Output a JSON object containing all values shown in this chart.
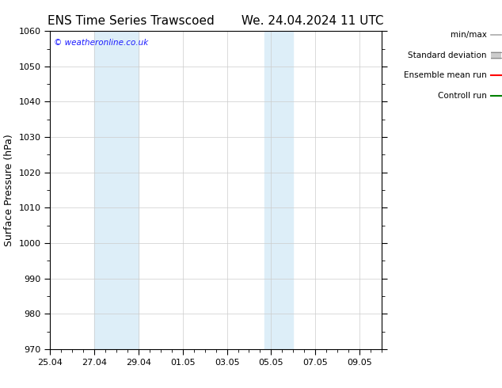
{
  "title_left": "ENS Time Series Trawscoed",
  "title_right": "We. 24.04.2024 11 UTC",
  "ylabel": "Surface Pressure (hPa)",
  "ylim": [
    970,
    1060
  ],
  "yticks": [
    970,
    980,
    990,
    1000,
    1010,
    1020,
    1030,
    1040,
    1050,
    1060
  ],
  "xtick_labels": [
    "25.04",
    "27.04",
    "29.04",
    "01.05",
    "03.05",
    "05.05",
    "07.05",
    "09.05"
  ],
  "xtick_positions": [
    0,
    2,
    4,
    6,
    8,
    10,
    12,
    14
  ],
  "xminor_step": 0.5,
  "xlim": [
    0,
    15
  ],
  "shaded_bands": [
    {
      "x_start": 2,
      "x_end": 4,
      "color": "#ddeef8"
    },
    {
      "x_start": 9.7,
      "x_end": 11.0,
      "color": "#ddeef8"
    }
  ],
  "watermark": "© weatheronline.co.uk",
  "legend_entries": [
    {
      "label": "min/max",
      "color": "#aaaaaa",
      "lw": 1.2,
      "type": "thin"
    },
    {
      "label": "Standard deviation",
      "color": "#cccccc",
      "lw": 7,
      "type": "thick"
    },
    {
      "label": "Ensemble mean run",
      "color": "#ff0000",
      "lw": 1.5,
      "type": "thin"
    },
    {
      "label": "Controll run",
      "color": "#008000",
      "lw": 1.5,
      "type": "thin"
    }
  ],
  "background_color": "#ffffff",
  "plot_bg_color": "#ffffff",
  "border_color": "#000000",
  "grid_color": "#cccccc",
  "title_fontsize": 11,
  "label_fontsize": 9,
  "tick_fontsize": 8,
  "legend_fontsize": 7.5
}
